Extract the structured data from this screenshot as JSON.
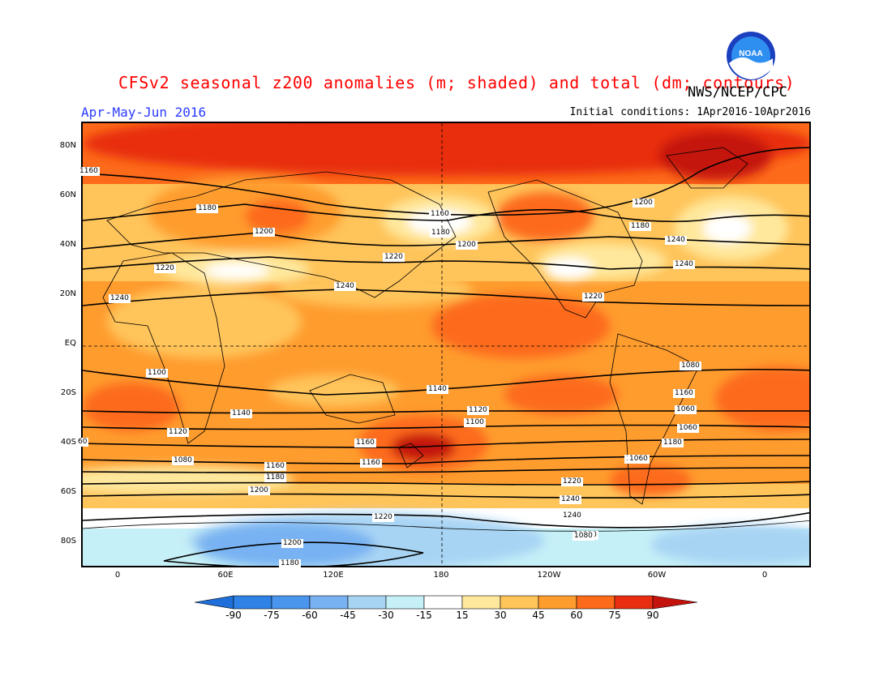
{
  "header": {
    "title": "CFSv2 seasonal z200 anomalies (m; shaded) and total (dm; contours)",
    "org": "NWS/NCEP/CPC",
    "season": "Apr-May-Jun 2016",
    "initial_conditions": "Initial conditions: 1Apr2016-10Apr2016",
    "logo_text": "NOAA"
  },
  "map": {
    "lat_labels": [
      "80N",
      "60N",
      "40N",
      "20N",
      "EQ",
      "20S",
      "40S",
      "60S",
      "80S"
    ],
    "lon_labels": [
      "0",
      "60E",
      "120E",
      "180",
      "120W",
      "60W",
      "0"
    ],
    "contour_labels": [
      "1160",
      "1180",
      "1200",
      "1220",
      "1240",
      "1240",
      "1220",
      "1200",
      "1180",
      "1160",
      "1140",
      "1120",
      "1100",
      "1080",
      "1060",
      "1060",
      "1160",
      "1180",
      "1200",
      "1220",
      "1240",
      "1240",
      "1220",
      "1200",
      "1180",
      "1160",
      "1140",
      "1120",
      "1100",
      "1080",
      "1160",
      "1180",
      "1200",
      "1220",
      "1240",
      "1240",
      "1220",
      "1200",
      "1180",
      "1160",
      "1060",
      "1080",
      "60"
    ],
    "colors": {
      "neg90": "#1e6fd9",
      "neg75": "#2f82e6",
      "neg60": "#4a95ee",
      "neg45": "#78b2f2",
      "neg30": "#a8d4f4",
      "neg15": "#c6f0f7",
      "neutral": "#ffffff",
      "pos15": "#ffe89c",
      "pos30": "#ffc45a",
      "pos45": "#ff9c2e",
      "pos60": "#fd6a1a",
      "pos75": "#e82d10",
      "pos90": "#c4120c"
    }
  },
  "colorbar": {
    "labels": [
      "-90",
      "-75",
      "-60",
      "-45",
      "-30",
      "-15",
      "15",
      "30",
      "45",
      "60",
      "75",
      "90"
    ]
  }
}
